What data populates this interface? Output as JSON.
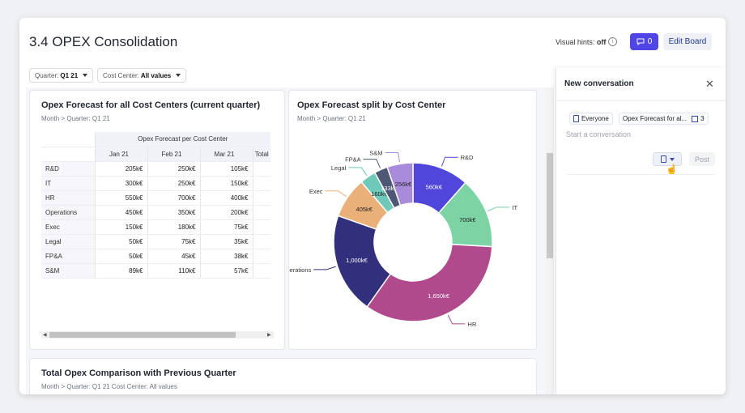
{
  "board": {
    "title": "3.4 OPEX Consolidation"
  },
  "header": {
    "visual_hints_label": "Visual hints:",
    "visual_hints_value": "off",
    "comments_count": "0",
    "edit_board_label": "Edit Board"
  },
  "filters": [
    {
      "key": "Quarter:",
      "value": "Q1 21"
    },
    {
      "key": "Cost Center:",
      "value": "All values"
    }
  ],
  "table_card": {
    "title": "Opex Forecast for all Cost Centers (current quarter)",
    "subtitle": "Month > Quarter: Q1 21",
    "group_header": "Opex Forecast per Cost Center",
    "columns": [
      "Jan 21",
      "Feb 21",
      "Mar 21",
      "Total"
    ],
    "rows": [
      {
        "label": "R&D",
        "values": [
          "205k€",
          "250k€",
          "105k€"
        ]
      },
      {
        "label": "IT",
        "values": [
          "300k€",
          "250k€",
          "150k€"
        ]
      },
      {
        "label": "HR",
        "values": [
          "550k€",
          "700k€",
          "400k€"
        ]
      },
      {
        "label": "Operations",
        "values": [
          "450k€",
          "350k€",
          "200k€"
        ]
      },
      {
        "label": "Exec",
        "values": [
          "150k€",
          "180k€",
          "75k€"
        ]
      },
      {
        "label": "Legal",
        "values": [
          "50k€",
          "75k€",
          "35k€"
        ]
      },
      {
        "label": "FP&A",
        "values": [
          "50k€",
          "45k€",
          "38k€"
        ]
      },
      {
        "label": "S&M",
        "values": [
          "89k€",
          "110k€",
          "57k€"
        ]
      }
    ]
  },
  "donut_card": {
    "title": "Opex Forecast split by Cost Center",
    "subtitle": "Month > Quarter: Q1 21"
  },
  "chart_data": {
    "type": "pie",
    "title": "Opex Forecast split by Cost Center",
    "categories": [
      "R&D",
      "IT",
      "HR",
      "Operations",
      "Exec",
      "Legal",
      "FP&A",
      "S&M"
    ],
    "values": [
      560,
      700,
      1650,
      1000,
      405,
      160,
      133,
      256
    ],
    "value_labels": [
      "560k€",
      "700k€",
      "1,650k€",
      "1,000k€",
      "405k€",
      "160k€",
      "133k€",
      "256k€"
    ],
    "colors": [
      "#5046d9",
      "#7dd3a3",
      "#b04a8c",
      "#322f7c",
      "#e9b07a",
      "#6ec9b8",
      "#4e5874",
      "#a98bdc"
    ]
  },
  "bottom_card": {
    "title": "Total Opex Comparison with Previous Quarter",
    "subtitle": "Month > Quarter: Q1 21   Cost Center: All values"
  },
  "panel": {
    "title": "New conversation",
    "chip_everyone": "Everyone",
    "chip_context": "Opex Forecast for al...",
    "chip_count": "3",
    "placeholder": "Start a conversation",
    "post_label": "Post"
  }
}
